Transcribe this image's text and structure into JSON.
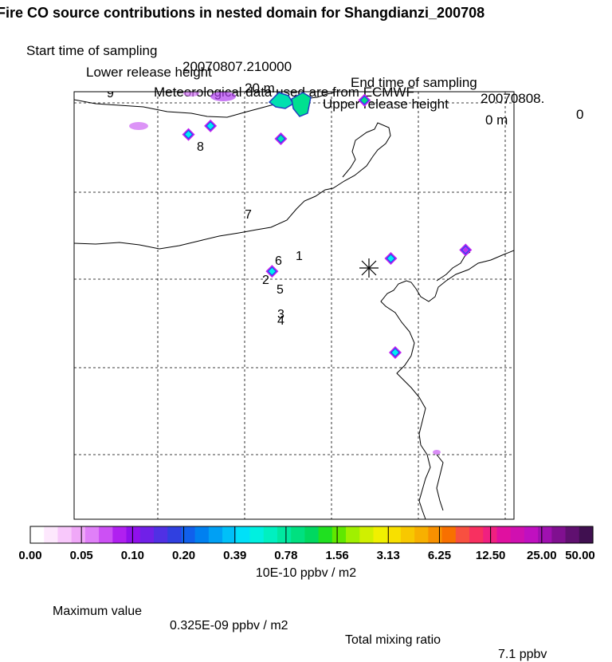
{
  "header": {
    "title": "Fire CO source contributions in nested domain for Shangdianzi_200708",
    "start_label": "Start time of sampling",
    "start_value": "20070807.210000",
    "end_label": "End time of sampling",
    "end_value": "20070808.",
    "end_suffix": "0",
    "lower_label": "Lower release height",
    "lower_value": "20 m",
    "upper_label": "Upper release height",
    "upper_value": "0 m",
    "met": "Meteorological data used are from ECMWF"
  },
  "chart_data": {
    "type": "heatmap",
    "title": "Fire CO source contributions in nested domain for Shangdianzi_200708",
    "colorbar": {
      "unit_label": "10E-10 ppbv / m2",
      "tick_labels": [
        "0.00",
        "0.05",
        "0.10",
        "0.20",
        "0.39",
        "0.78",
        "1.56",
        "3.13",
        "6.25",
        "12.50",
        "25.00",
        "50.00"
      ],
      "tick_values": [
        0.0,
        0.05,
        0.1,
        0.2,
        0.39,
        0.78,
        1.56,
        3.13,
        6.25,
        12.5,
        25.0,
        50.0
      ],
      "colors": [
        "#ffffff",
        "#fde8fd",
        "#f8c8fb",
        "#f0a8f8",
        "#e080f8",
        "#cc50f4",
        "#b020f0",
        "#9010ec",
        "#7020e8",
        "#5030e4",
        "#3040e0",
        "#1060ec",
        "#0080f0",
        "#00a0f4",
        "#00c0f8",
        "#00e0f8",
        "#00f0e0",
        "#00f0c0",
        "#00e8a0",
        "#00e080",
        "#00d860",
        "#20e020",
        "#60e800",
        "#a0f000",
        "#d0f000",
        "#f0f000",
        "#f8e000",
        "#f8c800",
        "#f8b000",
        "#f89000",
        "#f87000",
        "#f85040",
        "#f83060",
        "#f02080",
        "#e010a0",
        "#d010b0",
        "#c010c0",
        "#a010b0",
        "#801090",
        "#601070",
        "#401050"
      ]
    },
    "receptor_marker": "*",
    "track_labels": [
      "1",
      "2",
      "3",
      "4",
      "5",
      "6",
      "7",
      "8",
      "9"
    ],
    "sources": [
      {
        "lon_frac": 0.72,
        "lat_frac": 0.39,
        "level": 4
      },
      {
        "lon_frac": 0.45,
        "lat_frac": 0.42,
        "level": 4
      },
      {
        "lon_frac": 0.26,
        "lat_frac": 0.1,
        "level": 4
      },
      {
        "lon_frac": 0.31,
        "lat_frac": 0.08,
        "level": 4
      },
      {
        "lon_frac": 0.47,
        "lat_frac": 0.11,
        "level": 5
      },
      {
        "lon_frac": 0.66,
        "lat_frac": 0.02,
        "level": 6
      },
      {
        "lon_frac": 0.73,
        "lat_frac": 0.61,
        "level": 4
      },
      {
        "lon_frac": 0.89,
        "lat_frac": 0.37,
        "level": 3
      }
    ]
  },
  "footer": {
    "max_label": "Maximum value",
    "max_value": "0.325E-09 ppbv / m2",
    "total_label": "Total mixing ratio",
    "total_value": "7.1 ppbv"
  }
}
